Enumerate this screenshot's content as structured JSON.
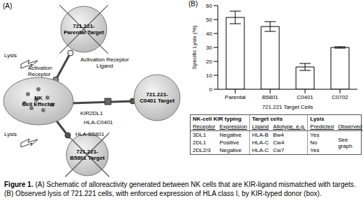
{
  "panel_a": {
    "label": "(A)",
    "targets": {
      "parental": "721.221-Parental Target",
      "c0401": "721.221-C0401 Target",
      "b5801": "721.221-B5801 Target"
    },
    "effector": "NK Cell Effector",
    "labels": {
      "lysis_top": "Lysis",
      "lysis_bottom": "Lysis",
      "activation_receptor": "Activation Receptor",
      "activation_ligand": "Activation Receptor Ligand",
      "kir": "KIR2DL1",
      "hla_c": "HLA-C0401",
      "hla_b": "HLA-B5801"
    }
  },
  "chart_data": {
    "type": "bar",
    "panel_label": "(B)",
    "categories": [
      "Parental",
      "B5801",
      "C0401",
      "C0702"
    ],
    "values": [
      51.5,
      45,
      16,
      30
    ],
    "errors": [
      4.5,
      3.5,
      2.5,
      0.5
    ],
    "color": "#ffffff",
    "ylim": [
      0,
      60
    ],
    "yticks": [
      0,
      10,
      20,
      30,
      40,
      50,
      60
    ],
    "y_label": "Specific Lysis (%)",
    "x_label": "721.221 Target Cells",
    "grid": false
  },
  "table": {
    "groups": [
      "NK-cell KIR typing",
      "Target cells",
      "Lysis"
    ],
    "columns": [
      "Receptor",
      "Expression",
      "Ligand",
      "Allotype, e.g.",
      "Predicted",
      "Observed"
    ],
    "rows": [
      [
        "3DL1",
        "Negative",
        "HLA-B",
        "Bw4",
        "Yes"
      ],
      [
        "2DL1",
        "Positive",
        "HLA-C",
        "Cw4",
        "No"
      ],
      [
        "2DL2/3",
        "Negative",
        "HLA-C",
        "Cw7",
        "Yes"
      ]
    ],
    "observed": "See graph"
  },
  "caption": {
    "label": "Figure 1.",
    "text": "(A) Schematic of alloreactivity generated between NK cells that are KIR-ligand mismatched with targets. (B) Observed lysis of 721.221 cells, with enforced expression of HLA class I, by KIR-typed donor (box)."
  }
}
